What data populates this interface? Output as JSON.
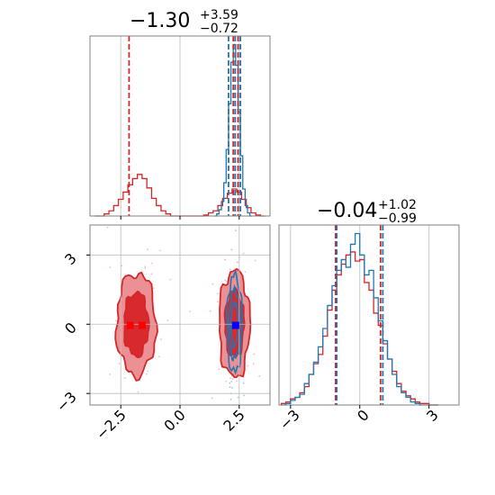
{
  "chart_data": {
    "type": "corner",
    "colors": {
      "red": "#d62728",
      "blue": "#1f77b4",
      "red_fill": "#eb9094",
      "red_mid": "#d8292e",
      "blue_marker": "#0000ff",
      "red_marker": "#ff0000"
    },
    "panels": [
      {
        "id": "hist-x",
        "type": "histogram",
        "xlim": [
          -3.8,
          3.8
        ],
        "title": {
          "value": "−1.30",
          "plus": "+3.59",
          "minus": "−0.72"
        },
        "grid_x": [
          -2.5,
          0.0,
          2.5
        ],
        "series": [
          {
            "name": "",
            "color": "red",
            "x": [
              -3.5,
              -3.3,
              -3.1,
              -2.9,
              -2.7,
              -2.5,
              -2.3,
              -2.1,
              -1.9,
              -1.7,
              -1.5,
              -1.3,
              -1.1,
              -0.9,
              -0.7,
              -0.5,
              -0.3,
              -0.1,
              0.1,
              0.3,
              0.5,
              0.7,
              0.9,
              1.1,
              1.3,
              1.5,
              1.7,
              1.9,
              2.1,
              2.3,
              2.5,
              2.7,
              2.9,
              3.1,
              3.3,
              3.5
            ],
            "y": [
              0,
              0,
              2,
              5,
              10,
              16,
              23,
              30,
              36,
              40,
              36,
              27,
              17,
              10,
              5,
              2,
              0,
              0,
              0,
              0,
              0,
              0,
              0,
              1,
              3,
              5,
              10,
              17,
              22,
              26,
              23,
              16,
              8,
              3,
              1,
              0
            ],
            "quantiles": [
              -2.15,
              2.25,
              2.45
            ]
          },
          {
            "name": "",
            "color": "blue",
            "x": [
              1.5,
              1.6,
              1.7,
              1.8,
              1.9,
              2.0,
              2.1,
              2.2,
              2.3,
              2.4,
              2.5,
              2.6,
              2.7,
              2.8,
              2.9,
              3.0
            ],
            "y": [
              0,
              2,
              6,
              14,
              32,
              64,
              108,
              148,
              165,
              145,
              100,
              58,
              26,
              10,
              3,
              0
            ],
            "quantiles": [
              2.05,
              2.33,
              2.55
            ]
          }
        ]
      },
      {
        "id": "hist-y",
        "type": "histogram",
        "xlim": [
          -3.5,
          4.3
        ],
        "title": {
          "value": "−0.04",
          "plus": "+1.02",
          "minus": "−0.99"
        },
        "grid_x": [
          -3,
          0,
          3
        ],
        "tick_labels": [
          "−3",
          "0",
          "3"
        ],
        "series": [
          {
            "name": "",
            "color": "red",
            "x": [
              -3.3,
              -3.1,
              -2.9,
              -2.7,
              -2.5,
              -2.3,
              -2.1,
              -1.9,
              -1.7,
              -1.5,
              -1.3,
              -1.1,
              -0.9,
              -0.7,
              -0.5,
              -0.3,
              -0.1,
              0.1,
              0.3,
              0.5,
              0.7,
              0.9,
              1.1,
              1.3,
              1.5,
              1.7,
              1.9,
              2.1,
              2.3,
              2.5,
              2.7,
              2.9,
              3.1,
              3.3
            ],
            "y": [
              1,
              2,
              4,
              5,
              8,
              12,
              20,
              27,
              33,
              45,
              62,
              75,
              85,
              92,
              98,
              100,
              94,
              95,
              80,
              75,
              60,
              52,
              40,
              30,
              22,
              14,
              9,
              6,
              4,
              2,
              1,
              1,
              0,
              0
            ],
            "quantiles": [
              -1.05,
              0.9
            ]
          },
          {
            "name": "",
            "color": "blue",
            "x": [
              -3.3,
              -3.1,
              -2.9,
              -2.7,
              -2.5,
              -2.3,
              -2.1,
              -1.9,
              -1.7,
              -1.5,
              -1.3,
              -1.1,
              -0.9,
              -0.7,
              -0.5,
              -0.3,
              -0.1,
              0.1,
              0.3,
              0.5,
              0.7,
              0.9,
              1.1,
              1.3,
              1.5,
              1.7,
              1.9,
              2.1,
              2.3,
              2.5,
              2.7,
              2.9,
              3.1,
              3.3
            ],
            "y": [
              0,
              1,
              3,
              5,
              7,
              14,
              20,
              28,
              38,
              50,
              65,
              78,
              88,
              95,
              90,
              105,
              112,
              98,
              85,
              88,
              70,
              55,
              42,
              30,
              20,
              12,
              8,
              5,
              2,
              1,
              0,
              0,
              0,
              0
            ],
            "quantiles": [
              -1.0,
              1.0
            ]
          }
        ]
      },
      {
        "id": "scatter-xy",
        "type": "2d-contour",
        "xlim": [
          -3.8,
          3.8
        ],
        "ylim": [
          -3.5,
          4.3
        ],
        "grid_x": [
          -2.5,
          0.0,
          2.5
        ],
        "grid_y": [
          -3,
          0,
          3
        ],
        "x_tick_labels": [
          "−2.5",
          "0.0",
          "2.5"
        ],
        "y_tick_labels": [
          "−3",
          "0",
          "3"
        ],
        "series": [
          {
            "name": "",
            "color": "red",
            "modes": [
              {
                "cx": -1.85,
                "cy": 0.0,
                "sx": 0.45,
                "sy": 1.2
              },
              {
                "cx": 2.3,
                "cy": 0.0,
                "sx": 0.35,
                "sy": 1.25
              }
            ],
            "markers": [
              [
                -2.1,
                -0.05
              ],
              [
                -1.6,
                -0.05
              ]
            ]
          },
          {
            "name": "",
            "color": "blue",
            "modes": [
              {
                "cx": 2.3,
                "cy": 0.0,
                "sx": 0.17,
                "sy": 1.1
              }
            ],
            "markers": [
              [
                2.35,
                -0.05
              ]
            ]
          }
        ]
      }
    ]
  }
}
